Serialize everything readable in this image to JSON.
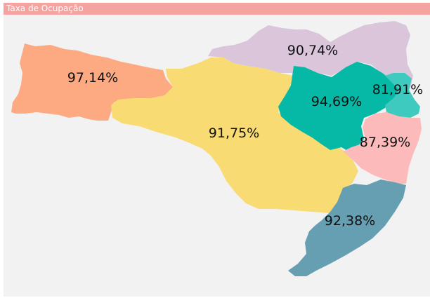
{
  "visual": {
    "title": "Taxa de Ocupação",
    "header_color": "#f4a3a0",
    "background_color": "#f2f2f2"
  },
  "regions": [
    {
      "label": "97,14%",
      "color": "#fdaa82"
    },
    {
      "label": "91,75%",
      "color": "#f8dc73"
    },
    {
      "label": "90,74%",
      "color": "#dac5da"
    },
    {
      "label": "94,69%",
      "color": "#05b9a6"
    },
    {
      "label": "81,91%",
      "color": "#3fcac0"
    },
    {
      "label": "87,39%",
      "color": "#fcbbba"
    },
    {
      "label": "92,38%",
      "color": "#669eb2"
    }
  ]
}
